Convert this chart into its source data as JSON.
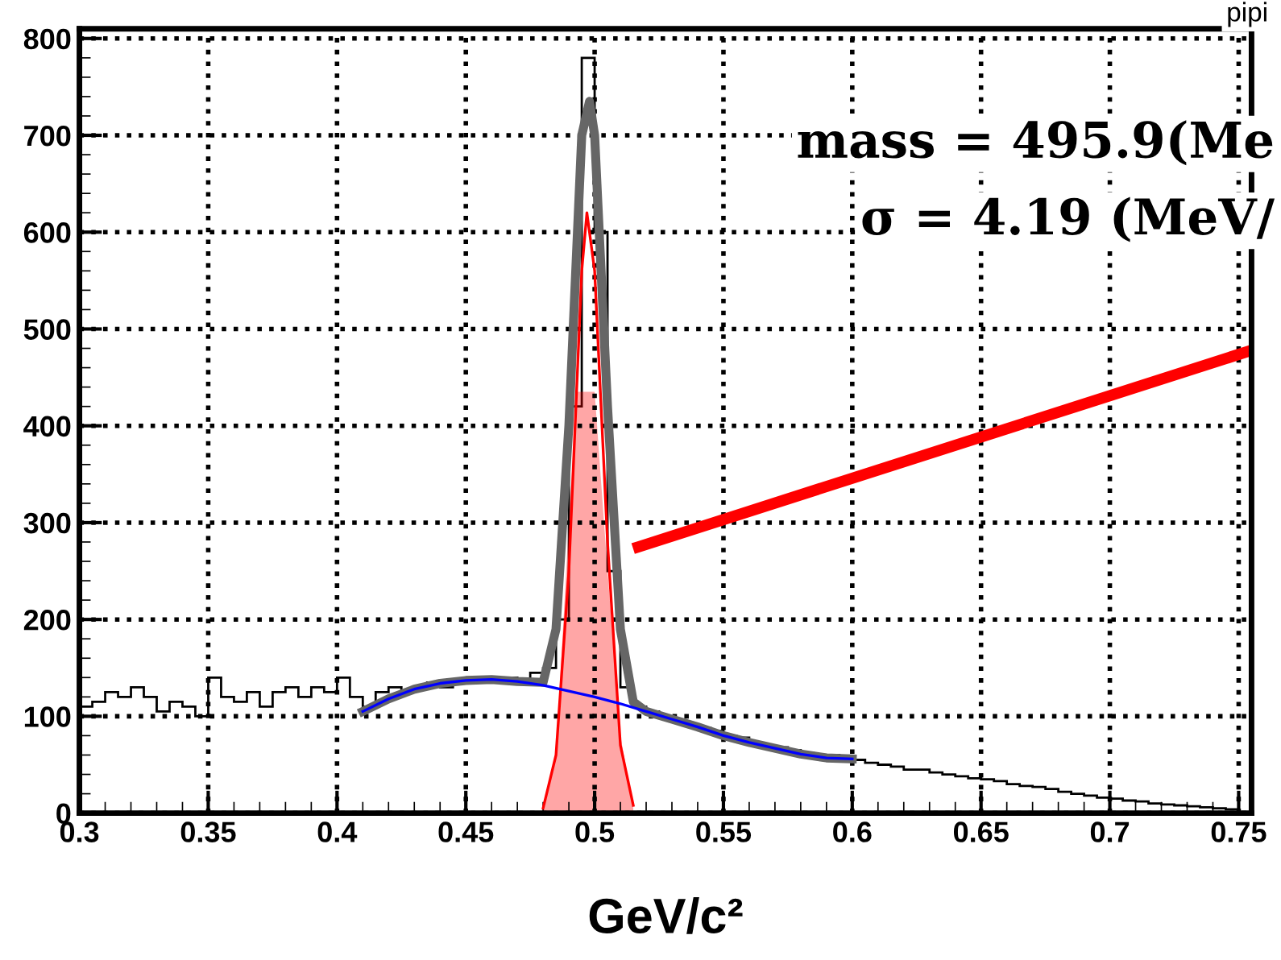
{
  "chart_data": {
    "type": "histogram",
    "xlabel": "GeV/c²",
    "bins": [
      0.3,
      0.305,
      0.31,
      0.315,
      0.32,
      0.325,
      0.33,
      0.335,
      0.34,
      0.345,
      0.35,
      0.355,
      0.36,
      0.365,
      0.37,
      0.375,
      0.38,
      0.385,
      0.39,
      0.395,
      0.4,
      0.405,
      0.41,
      0.415,
      0.42,
      0.425,
      0.43,
      0.435,
      0.44,
      0.445,
      0.45,
      0.455,
      0.46,
      0.465,
      0.47,
      0.475,
      0.48,
      0.485,
      0.49,
      0.495,
      0.5,
      0.505,
      0.51,
      0.515,
      0.52,
      0.525,
      0.53,
      0.535,
      0.54,
      0.545,
      0.55,
      0.555,
      0.56,
      0.565,
      0.57,
      0.575,
      0.58,
      0.585,
      0.59,
      0.595,
      0.6,
      0.605,
      0.61,
      0.615,
      0.62,
      0.625,
      0.63,
      0.635,
      0.64,
      0.645,
      0.65,
      0.655,
      0.66,
      0.665,
      0.67,
      0.675,
      0.68,
      0.685,
      0.69,
      0.695,
      0.7,
      0.705,
      0.71,
      0.715,
      0.72,
      0.725,
      0.73,
      0.735,
      0.74,
      0.745,
      0.75
    ],
    "values": [
      110,
      115,
      125,
      120,
      130,
      120,
      105,
      115,
      110,
      100,
      140,
      120,
      115,
      125,
      110,
      125,
      130,
      120,
      130,
      125,
      140,
      120,
      110,
      125,
      130,
      125,
      130,
      135,
      130,
      135,
      140,
      135,
      135,
      140,
      135,
      145,
      150,
      200,
      420,
      780,
      600,
      250,
      130,
      110,
      105,
      100,
      95,
      90,
      88,
      85,
      80,
      78,
      72,
      70,
      68,
      65,
      62,
      60,
      60,
      58,
      55,
      52,
      50,
      48,
      45,
      45,
      42,
      40,
      38,
      36,
      35,
      33,
      30,
      28,
      27,
      25,
      22,
      20,
      18,
      16,
      15,
      13,
      12,
      10,
      9,
      8,
      7,
      6,
      5,
      4
    ],
    "color": "#000000",
    "series": [
      {
        "type": "area",
        "color": "#ff0000",
        "x": [
          0.48,
          0.485,
          0.49,
          0.493,
          0.5,
          0.505,
          0.51,
          0.515
        ],
        "values": [
          0,
          60,
          300,
          435,
          435,
          250,
          80,
          5
        ]
      },
      {
        "type": "line",
        "color": "#666666",
        "x": [
          0.41,
          0.42,
          0.43,
          0.44,
          0.45,
          0.46,
          0.47,
          0.48,
          0.485,
          0.49,
          0.495,
          0.498,
          0.5,
          0.505,
          0.51,
          0.515,
          0.52,
          0.53,
          0.54,
          0.55,
          0.56,
          0.57,
          0.58,
          0.59,
          0.6
        ],
        "values": [
          105,
          118,
          128,
          134,
          137,
          138,
          136,
          135,
          190,
          400,
          700,
          735,
          700,
          420,
          190,
          115,
          105,
          97,
          89,
          80,
          73,
          67,
          61,
          57,
          56
        ]
      },
      {
        "type": "line",
        "color": "#ff0000",
        "x": [
          0.48,
          0.485,
          0.49,
          0.495,
          0.497,
          0.5,
          0.505,
          0.51,
          0.515
        ],
        "values": [
          5,
          60,
          250,
          560,
          620,
          560,
          280,
          70,
          8
        ]
      },
      {
        "type": "line",
        "color": "#0000ff",
        "x": [
          0.41,
          0.42,
          0.43,
          0.44,
          0.45,
          0.46,
          0.47,
          0.48,
          0.49,
          0.5,
          0.51,
          0.52,
          0.53,
          0.54,
          0.55,
          0.56,
          0.57,
          0.58,
          0.59,
          0.6
        ],
        "values": [
          105,
          118,
          128,
          134,
          137,
          138,
          136,
          132,
          126,
          120,
          113,
          105,
          97,
          89,
          80,
          73,
          67,
          61,
          57,
          56
        ]
      },
      {
        "type": "line",
        "color": "#ff0000",
        "x": [
          0.517,
          0.755
        ],
        "values": [
          275,
          478
        ]
      }
    ],
    "xlim": [
      0.3,
      0.755
    ],
    "ylim": [
      0,
      810
    ],
    "xticks": [
      0.3,
      0.35,
      0.4,
      0.45,
      0.5,
      0.55,
      0.6,
      0.65,
      0.7,
      0.75
    ],
    "yticks": [
      0,
      100,
      200,
      300,
      400,
      500,
      600,
      700,
      800
    ],
    "grid": true,
    "annotations": [
      "pipi",
      "mass = 495.9(Me",
      "σ = 4.19 (MeV/"
    ]
  }
}
